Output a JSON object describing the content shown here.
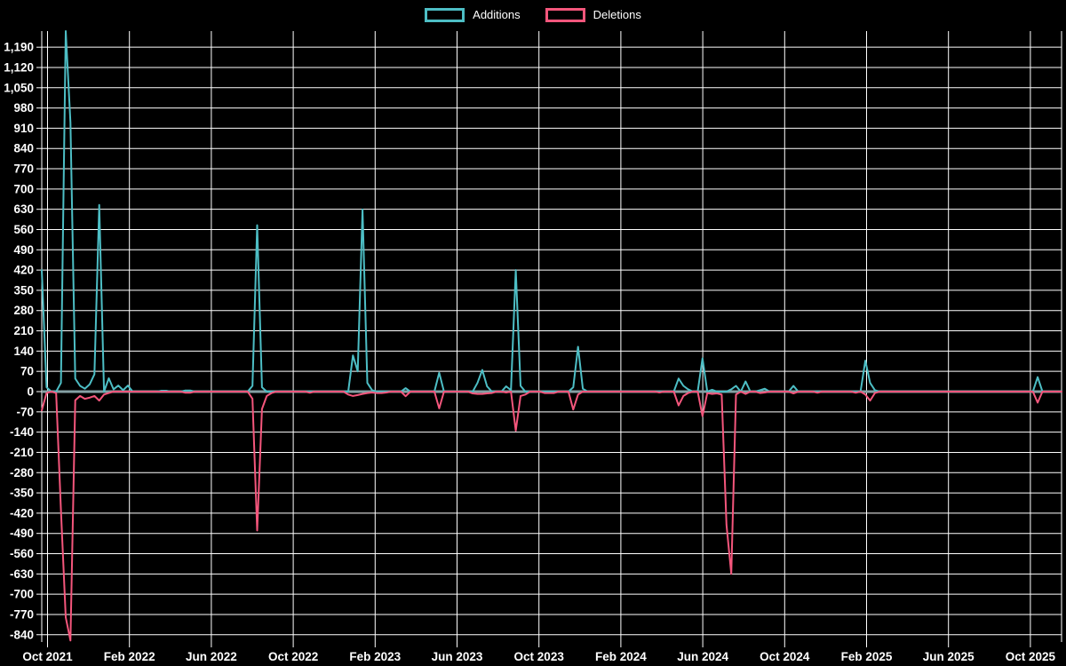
{
  "legend": {
    "additions_label": "Additions",
    "deletions_label": "Deletions"
  },
  "colors": {
    "background": "#000000",
    "grid": "#ffffff",
    "text": "#ffffff",
    "zero_line": "#85a0a4",
    "additions": "#4dbec5",
    "deletions": "#f4567c"
  },
  "chart_data": {
    "type": "line",
    "title": "",
    "xlabel": "",
    "ylabel": "",
    "x_unit": "week",
    "x_range": [
      "Oct 2021",
      "Oct 2025"
    ],
    "x_tick_labels": [
      "Oct 2021",
      "Feb 2022",
      "Jun 2022",
      "Oct 2022",
      "Feb 2023",
      "Jun 2023",
      "Oct 2023",
      "Feb 2024",
      "Jun 2024",
      "Oct 2024",
      "Feb 2025",
      "Jun 2025",
      "Oct 2025"
    ],
    "y_tick_labels": [
      "1,190",
      "1,120",
      "1,050",
      "980",
      "910",
      "840",
      "770",
      "700",
      "630",
      "560",
      "490",
      "420",
      "350",
      "280",
      "210",
      "140",
      "70",
      "0",
      "-70",
      "-140",
      "-210",
      "-280",
      "-350",
      "-420",
      "-490",
      "-560",
      "-630",
      "-700",
      "-770",
      "-840"
    ],
    "y_tick_values": [
      1190,
      1120,
      1050,
      980,
      910,
      840,
      770,
      700,
      630,
      560,
      490,
      420,
      350,
      280,
      210,
      140,
      70,
      0,
      -70,
      -140,
      -210,
      -280,
      -350,
      -420,
      -490,
      -560,
      -630,
      -700,
      -770,
      -840
    ],
    "y_tick_interval": 70,
    "ylim": [
      -860,
      1260
    ],
    "grid": true,
    "legend_position": "top-center",
    "series": [
      {
        "name": "Additions",
        "color": "#4dbec5",
        "values": [
          420,
          15,
          0,
          0,
          30,
          1260,
          930,
          45,
          20,
          10,
          25,
          60,
          645,
          0,
          46,
          8,
          21,
          5,
          21,
          0,
          0,
          0,
          0,
          0,
          0,
          3,
          3,
          0,
          0,
          0,
          4,
          4,
          0,
          0,
          0,
          0,
          0,
          0,
          0,
          0,
          0,
          0,
          0,
          0,
          20,
          575,
          15,
          0,
          0,
          0,
          0,
          0,
          0,
          0,
          0,
          0,
          0,
          0,
          0,
          0,
          0,
          0,
          0,
          0,
          0,
          125,
          70,
          630,
          30,
          5,
          0,
          0,
          0,
          0,
          0,
          0,
          12,
          0,
          0,
          0,
          0,
          0,
          0,
          65,
          0,
          0,
          0,
          0,
          0,
          0,
          0,
          30,
          75,
          18,
          0,
          0,
          0,
          18,
          5,
          420,
          20,
          0,
          0,
          0,
          0,
          0,
          0,
          0,
          0,
          0,
          0,
          15,
          155,
          10,
          0,
          0,
          0,
          0,
          0,
          0,
          0,
          0,
          0,
          0,
          0,
          0,
          0,
          0,
          0,
          0,
          0,
          0,
          0,
          45,
          20,
          8,
          0,
          0,
          115,
          0,
          6,
          0,
          0,
          0,
          8,
          20,
          0,
          35,
          0,
          0,
          5,
          10,
          0,
          0,
          0,
          0,
          0,
          20,
          0,
          0,
          0,
          0,
          0,
          0,
          0,
          0,
          0,
          0,
          0,
          0,
          0,
          0,
          107,
          30,
          5,
          0,
          0,
          0,
          0,
          0,
          0,
          0,
          0,
          0,
          0,
          0,
          0,
          0,
          0,
          0,
          0,
          0,
          0,
          0,
          0,
          0,
          0,
          0,
          0,
          0,
          0,
          0,
          0,
          0,
          0,
          0,
          0,
          0,
          50,
          0,
          0,
          0,
          0,
          0
        ]
      },
      {
        "name": "Deletions",
        "color": "#f4567c",
        "values": [
          -65,
          -5,
          0,
          -5,
          -410,
          -780,
          -860,
          -30,
          -15,
          -25,
          -21,
          -15,
          -31,
          -10,
          -5,
          0,
          0,
          0,
          0,
          0,
          0,
          0,
          0,
          0,
          0,
          0,
          0,
          0,
          0,
          0,
          -4,
          -4,
          0,
          0,
          0,
          0,
          0,
          0,
          0,
          0,
          0,
          0,
          0,
          0,
          -25,
          -480,
          -60,
          -15,
          -5,
          0,
          0,
          0,
          0,
          0,
          0,
          0,
          -4,
          0,
          0,
          0,
          0,
          0,
          0,
          0,
          -10,
          -15,
          -12,
          -8,
          -5,
          -3,
          -5,
          -5,
          -3,
          0,
          0,
          0,
          -16,
          0,
          0,
          0,
          0,
          0,
          0,
          -58,
          0,
          0,
          0,
          0,
          0,
          0,
          -6,
          -8,
          -8,
          -6,
          -5,
          0,
          0,
          -3,
          0,
          -135,
          -15,
          -10,
          0,
          0,
          0,
          -5,
          -5,
          -5,
          0,
          0,
          0,
          -62,
          -10,
          0,
          0,
          0,
          0,
          0,
          0,
          0,
          0,
          0,
          0,
          0,
          0,
          0,
          0,
          0,
          0,
          -3,
          0,
          0,
          0,
          -48,
          -15,
          -5,
          0,
          0,
          -85,
          -5,
          -8,
          -6,
          -10,
          -460,
          -630,
          -10,
          0,
          -8,
          0,
          0,
          -5,
          -3,
          0,
          0,
          0,
          0,
          0,
          -6,
          0,
          0,
          0,
          0,
          -4,
          0,
          0,
          0,
          0,
          0,
          0,
          0,
          -4,
          0,
          -10,
          -31,
          -5,
          0,
          0,
          0,
          0,
          0,
          0,
          0,
          0,
          0,
          0,
          0,
          0,
          0,
          0,
          0,
          0,
          0,
          0,
          0,
          0,
          0,
          0,
          0,
          0,
          0,
          0,
          0,
          0,
          0,
          0,
          0,
          0,
          0,
          -38,
          0,
          0,
          0,
          0,
          0
        ]
      }
    ]
  }
}
